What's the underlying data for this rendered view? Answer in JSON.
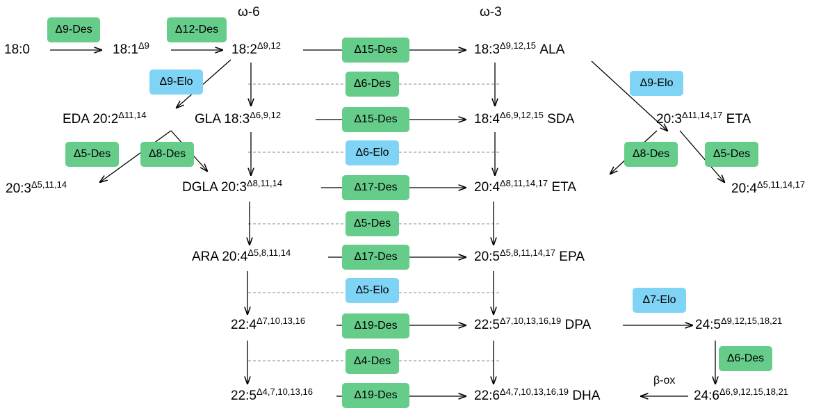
{
  "headers": {
    "omega6": "ω-6",
    "omega3": "ω-3"
  },
  "colors": {
    "desaturase": "#66cc8a",
    "elongase": "#7fd3f5",
    "dashed_line": "#888888",
    "arrow": "#000000"
  },
  "compounds": {
    "c18_0": {
      "base": "18:0",
      "sup": "",
      "abbr": ""
    },
    "c18_1": {
      "base": "18:1",
      "sup": "Δ9",
      "abbr": ""
    },
    "c18_2": {
      "base": "18:2",
      "sup": "Δ9,12",
      "abbr": ""
    },
    "ala": {
      "base": "18:3",
      "sup": "Δ9,12,15",
      "abbr": "ALA"
    },
    "eda": {
      "prefix": "EDA",
      "base": "20:2",
      "sup": "Δ11,14"
    },
    "gla": {
      "prefix": "GLA",
      "base": "18:3",
      "sup": "Δ6,9,12"
    },
    "sda": {
      "base": "18:4",
      "sup": "Δ6,9,12,15",
      "abbr": "SDA"
    },
    "eta1": {
      "base": "20:3",
      "sup": "Δ11,14,17",
      "abbr": "ETA"
    },
    "c20_3_left": {
      "base": "20:3",
      "sup": "Δ5,11,14"
    },
    "dgla": {
      "prefix": "DGLA",
      "base": "20:3",
      "sup": "Δ8,11,14"
    },
    "eta2": {
      "base": "20:4",
      "sup": "Δ8,11,14,17",
      "abbr": "ETA"
    },
    "c20_4_right": {
      "base": "20:4",
      "sup": "Δ5,11,14,17"
    },
    "ara": {
      "prefix": "ARA",
      "base": "20:4",
      "sup": "Δ5,8,11,14"
    },
    "epa": {
      "base": "20:5",
      "sup": "Δ5,8,11,14,17",
      "abbr": "EPA"
    },
    "c22_4": {
      "base": "22:4",
      "sup": "Δ7,10,13,16"
    },
    "dpa": {
      "base": "22:5",
      "sup": "Δ7,10,13,16,19",
      "abbr": "DPA"
    },
    "c24_5": {
      "base": "24:5",
      "sup": "Δ9,12,15,18,21"
    },
    "c22_5": {
      "base": "22:5",
      "sup": "Δ4,7,10,13,16"
    },
    "dha": {
      "base": "22:6",
      "sup": "Δ4,7,10,13,16,19",
      "abbr": "DHA"
    },
    "c24_6": {
      "base": "24:6",
      "sup": "Δ6,9,12,15,18,21"
    }
  },
  "enzymes": {
    "e_d9des": "Δ9-Des",
    "e_d12des": "Δ12-Des",
    "e_d15des_1": "Δ15-Des",
    "e_d6des_1": "Δ6-Des",
    "e_d9elo_left": "Δ9-Elo",
    "e_d9elo_right": "Δ9-Elo",
    "e_d15des_2": "Δ15-Des",
    "e_d5des_left": "Δ5-Des",
    "e_d8des_left": "Δ8-Des",
    "e_d6elo": "Δ6-Elo",
    "e_d8des_right": "Δ8-Des",
    "e_d5des_right": "Δ5-Des",
    "e_d17des_1": "Δ17-Des",
    "e_d5des_mid": "Δ5-Des",
    "e_d17des_2": "Δ17-Des",
    "e_d5elo": "Δ5-Elo",
    "e_d7elo": "Δ7-Elo",
    "e_d19des_1": "Δ19-Des",
    "e_d6des_2": "Δ6-Des",
    "e_d4des": "Δ4-Des",
    "e_d19des_2": "Δ19-Des"
  },
  "beta_ox": "β-ox"
}
